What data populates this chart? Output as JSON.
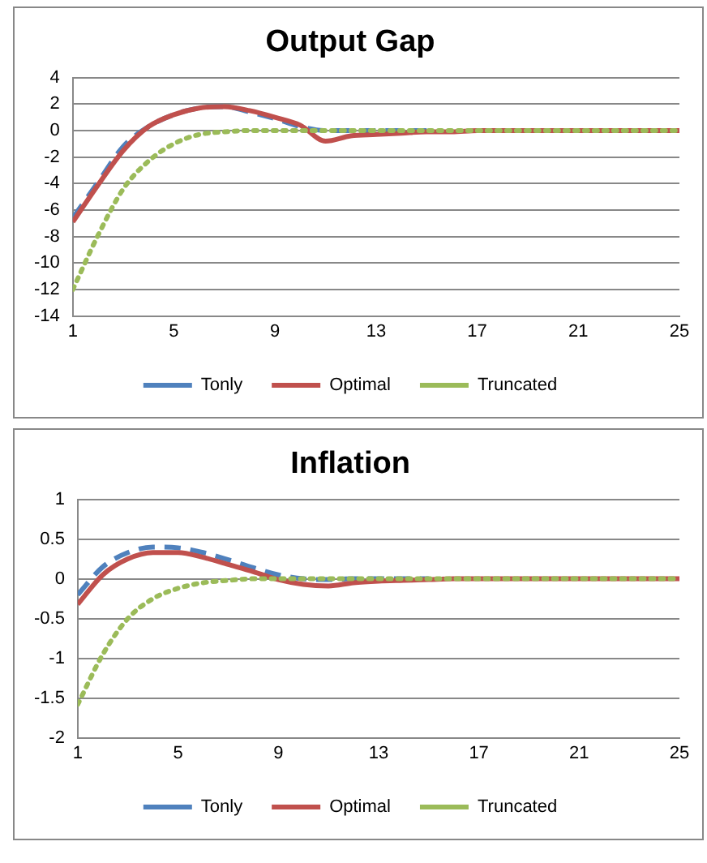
{
  "chart_data": [
    {
      "type": "line",
      "title": "Output Gap",
      "x": [
        1,
        2,
        3,
        4,
        5,
        6,
        7,
        8,
        9,
        10,
        11,
        12,
        13,
        14,
        15,
        16,
        17,
        18,
        19,
        20,
        21,
        22,
        23,
        24,
        25
      ],
      "xlim": [
        1,
        25
      ],
      "xticks": [
        1,
        5,
        9,
        13,
        17,
        21,
        25
      ],
      "ylim": [
        -14,
        4
      ],
      "yticks": [
        -14,
        -12,
        -10,
        -8,
        -6,
        -4,
        -2,
        0,
        2,
        4
      ],
      "grid": "y",
      "legend": "bottom",
      "marker": "none",
      "series": [
        {
          "name": "Tonly",
          "color": "#4f81bd",
          "line_style": "dashed",
          "values": [
            -6.6,
            -3.9,
            -1.2,
            0.3,
            1.2,
            1.7,
            1.8,
            1.4,
            0.9,
            0.3,
            0,
            0,
            0,
            0,
            0,
            null,
            null,
            null,
            null,
            null,
            null,
            null,
            null,
            null,
            null
          ]
        },
        {
          "name": "Optimal",
          "color": "#c0504d",
          "line_style": "solid",
          "values": [
            -6.9,
            -4.1,
            -1.5,
            0.3,
            1.2,
            1.7,
            1.8,
            1.5,
            1.0,
            0.4,
            -0.8,
            -0.4,
            -0.3,
            -0.2,
            -0.1,
            -0.1,
            0,
            0,
            0,
            0,
            0,
            0,
            0,
            0,
            0
          ]
        },
        {
          "name": "Truncated",
          "color": "#9bbb59",
          "line_style": "dotted",
          "values": [
            -12,
            -7.9,
            -4.4,
            -2.3,
            -1.0,
            -0.3,
            -0.1,
            0,
            0,
            0,
            0,
            0,
            0,
            0,
            0,
            0,
            0,
            0,
            0,
            0,
            0,
            0,
            0,
            0,
            0
          ]
        }
      ]
    },
    {
      "type": "line",
      "title": "Inflation",
      "x": [
        1,
        2,
        3,
        4,
        5,
        6,
        7,
        8,
        9,
        10,
        11,
        12,
        13,
        14,
        15,
        16,
        17,
        18,
        19,
        20,
        21,
        22,
        23,
        24,
        25
      ],
      "xlim": [
        1,
        25
      ],
      "xticks": [
        1,
        5,
        9,
        13,
        17,
        21,
        25
      ],
      "ylim": [
        -2,
        1
      ],
      "yticks": [
        -2,
        -1.5,
        -1,
        -0.5,
        0,
        0.5,
        1
      ],
      "grid": "y",
      "legend": "bottom",
      "marker": "none",
      "series": [
        {
          "name": "Tonly",
          "color": "#4f81bd",
          "line_style": "dashed",
          "values": [
            -0.2,
            0.15,
            0.33,
            0.4,
            0.39,
            0.33,
            0.24,
            0.14,
            0.05,
            0,
            -0.01,
            0,
            0,
            0,
            0,
            null,
            null,
            null,
            null,
            null,
            null,
            null,
            null,
            null,
            null
          ]
        },
        {
          "name": "Optimal",
          "color": "#c0504d",
          "line_style": "solid",
          "values": [
            -0.32,
            0.05,
            0.25,
            0.33,
            0.33,
            0.27,
            0.18,
            0.09,
            -0.01,
            -0.07,
            -0.09,
            -0.05,
            -0.03,
            -0.02,
            -0.01,
            0,
            0,
            0,
            0,
            0,
            0,
            0,
            0,
            0,
            0
          ]
        },
        {
          "name": "Truncated",
          "color": "#9bbb59",
          "line_style": "dotted",
          "values": [
            -1.58,
            -0.95,
            -0.5,
            -0.25,
            -0.12,
            -0.05,
            -0.02,
            0,
            0,
            0,
            0,
            0,
            0,
            0,
            0,
            0,
            0,
            0,
            0,
            0,
            0,
            0,
            0,
            0,
            0
          ]
        }
      ]
    }
  ]
}
